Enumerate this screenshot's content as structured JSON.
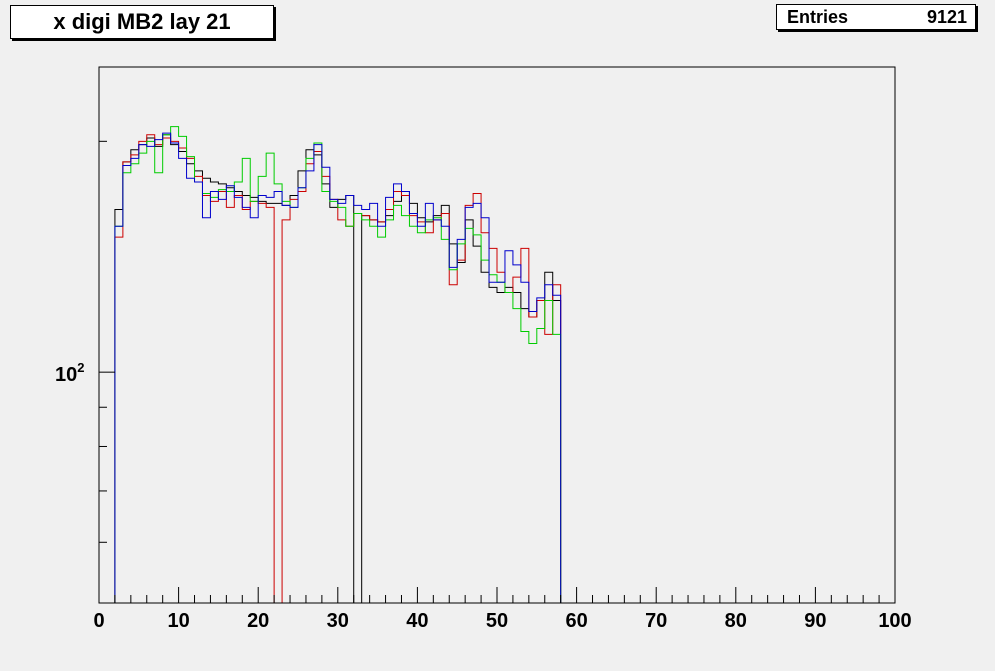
{
  "title": "x digi MB2 lay 21",
  "stats": {
    "label": "Entries",
    "value": "9121"
  },
  "colors": {
    "black": "#000000",
    "red": "#cc0000",
    "green": "#00cc00",
    "blue": "#0000cc",
    "frame": "#000000",
    "pad": "#f0f0f0"
  },
  "chart_data": {
    "type": "histogram",
    "title": "x digi MB2 lay 21",
    "xlim": [
      0,
      100
    ],
    "ylim": [
      50,
      250
    ],
    "y_scale": "log",
    "x_ticks": [
      0,
      10,
      20,
      30,
      40,
      50,
      60,
      70,
      80,
      90,
      100
    ],
    "x_tick_labels": [
      "0",
      "10",
      "20",
      "30",
      "40",
      "50",
      "60",
      "70",
      "80",
      "90",
      "100"
    ],
    "y_tick_label": "10^2",
    "y_tick_value": 100,
    "bin_width": 1,
    "legend": "none",
    "grid": false,
    "series": [
      {
        "color": "black",
        "values": [
          0,
          0,
          163,
          188,
          195,
          198,
          202,
          197,
          204,
          198,
          194,
          187,
          183,
          179,
          177,
          176,
          174,
          172,
          170,
          169,
          167,
          166,
          166,
          165,
          170,
          183,
          195,
          192,
          176,
          164,
          168,
          170,
          0,
          160,
          158,
          157,
          160,
          167,
          172,
          166,
          159,
          157,
          160,
          165,
          147,
          139,
          158,
          146,
          135,
          129,
          127,
          129,
          127,
          121,
          118,
          124,
          135,
          124,
          0,
          0
        ]
      },
      {
        "color": "red",
        "values": [
          0,
          0,
          150,
          188,
          192,
          200,
          204,
          198,
          202,
          200,
          196,
          190,
          180,
          170,
          167,
          172,
          164,
          170,
          163,
          167,
          166,
          164,
          0,
          158,
          168,
          172,
          187,
          194,
          180,
          168,
          158,
          155,
          161,
          160,
          158,
          157,
          163,
          172,
          170,
          160,
          157,
          152,
          158,
          161,
          130,
          140,
          165,
          171,
          152,
          145,
          135,
          127,
          133,
          145,
          118,
          124,
          112,
          130,
          0,
          0
        ]
      },
      {
        "color": "green",
        "values": [
          0,
          0,
          155,
          182,
          187,
          193,
          200,
          182,
          204,
          209,
          203,
          191,
          177,
          171,
          169,
          173,
          172,
          177,
          190,
          167,
          180,
          193,
          176,
          167,
          164,
          174,
          190,
          199,
          172,
          167,
          164,
          155,
          161,
          158,
          155,
          150,
          158,
          165,
          160,
          155,
          152,
          158,
          159,
          149,
          136,
          147,
          154,
          151,
          140,
          134,
          131,
          127,
          121,
          113,
          109,
          114,
          124,
          112,
          0,
          0
        ]
      },
      {
        "color": "blue",
        "values": [
          0,
          0,
          155,
          186,
          190,
          198,
          197,
          201,
          205,
          199,
          190,
          179,
          177,
          159,
          172,
          168,
          175,
          169,
          164,
          159,
          170,
          169,
          172,
          165,
          164,
          174,
          183,
          198,
          185,
          168,
          166,
          170,
          165,
          163,
          166,
          155,
          169,
          176,
          172,
          161,
          155,
          166,
          158,
          155,
          137,
          149,
          164,
          166,
          159,
          131,
          131,
          144,
          138,
          131,
          120,
          125,
          130,
          126,
          0,
          0
        ]
      }
    ]
  }
}
